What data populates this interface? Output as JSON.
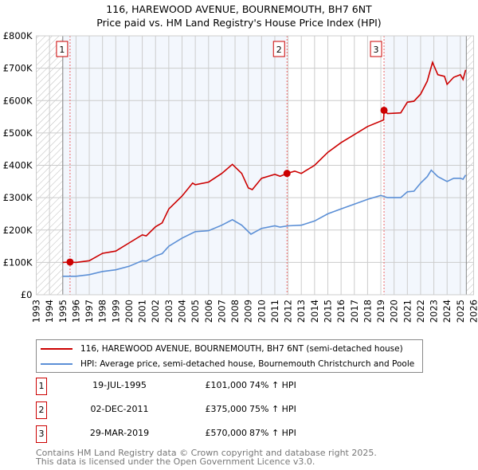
{
  "chart_data": {
    "type": "line",
    "title": "116, HAREWOOD AVENUE, BOURNEMOUTH, BH7 6NT",
    "subtitle": "Price paid vs. HM Land Registry's House Price Index (HPI)",
    "xlim": [
      1993,
      2026
    ],
    "ylim": [
      0,
      800000
    ],
    "x_ticks": [
      "1993",
      "1994",
      "1995",
      "1996",
      "1997",
      "1998",
      "1999",
      "2000",
      "2001",
      "2002",
      "2003",
      "2004",
      "2005",
      "2006",
      "2007",
      "2008",
      "2009",
      "2010",
      "2011",
      "2012",
      "2013",
      "2014",
      "2015",
      "2016",
      "2017",
      "2018",
      "2019",
      "2020",
      "2021",
      "2022",
      "2023",
      "2024",
      "2025",
      "2026"
    ],
    "y_ticks": [
      {
        "v": 0,
        "label": "£0"
      },
      {
        "v": 100000,
        "label": "£100K"
      },
      {
        "v": 200000,
        "label": "£200K"
      },
      {
        "v": 300000,
        "label": "£300K"
      },
      {
        "v": 400000,
        "label": "£400K"
      },
      {
        "v": 500000,
        "label": "£500K"
      },
      {
        "v": 600000,
        "label": "£600K"
      },
      {
        "v": 700000,
        "label": "£700K"
      },
      {
        "v": 800000,
        "label": "£800K"
      }
    ],
    "grid": true,
    "data_start": 1995.0,
    "data_end": 2025.45,
    "series": [
      {
        "name": "116, HAREWOOD AVENUE, BOURNEMOUTH, BH7 6NT (semi-detached house)",
        "color": "#cc0000",
        "x": [
          1995,
          1995.55,
          1996,
          1997,
          1998,
          1999,
          2000,
          2001,
          2001.3,
          2002,
          2002.5,
          2003,
          2004,
          2004.8,
          2005,
          2006,
          2007,
          2007.8,
          2008.5,
          2009,
          2009.3,
          2010,
          2011,
          2011.4,
          2011.92,
          2012.5,
          2013,
          2014,
          2015,
          2016,
          2017,
          2018,
          2019.2,
          2019.25,
          2019.5,
          2020.5,
          2021,
          2021.5,
          2022,
          2022.5,
          2022.9,
          2023.3,
          2023.8,
          2024,
          2024.5,
          2025,
          2025.2,
          2025.4
        ],
        "y": [
          100000,
          101000,
          100000,
          105000,
          128000,
          135000,
          160000,
          185000,
          182000,
          210000,
          222000,
          265000,
          305000,
          345000,
          340000,
          348000,
          375000,
          403000,
          375000,
          330000,
          325000,
          360000,
          372000,
          366000,
          375000,
          382000,
          375000,
          400000,
          440000,
          470000,
          495000,
          520000,
          540000,
          570000,
          560000,
          562000,
          595000,
          598000,
          620000,
          660000,
          718000,
          680000,
          675000,
          650000,
          672000,
          680000,
          665000,
          695000
        ]
      },
      {
        "name": "HPI: Average price, semi-detached house, Bournemouth Christchurch and Poole",
        "color": "#5b8fd6",
        "x": [
          1995,
          1996,
          1997,
          1998,
          1999,
          2000,
          2001,
          2001.3,
          2002,
          2002.5,
          2003,
          2004,
          2005,
          2006,
          2007,
          2007.8,
          2008.5,
          2009.2,
          2010,
          2011,
          2011.4,
          2012,
          2013,
          2014,
          2015,
          2016,
          2017,
          2018,
          2019,
          2019.5,
          2020.5,
          2021,
          2021.5,
          2022,
          2022.5,
          2022.8,
          2023.3,
          2024,
          2024.5,
          2025,
          2025.2,
          2025.4
        ],
        "y": [
          57000,
          57000,
          62000,
          72000,
          77000,
          88000,
          105000,
          104000,
          120000,
          127000,
          150000,
          175000,
          195000,
          198000,
          215000,
          232000,
          215000,
          187000,
          205000,
          213000,
          209000,
          213000,
          215000,
          228000,
          250000,
          265000,
          280000,
          295000,
          307000,
          300000,
          300000,
          318000,
          320000,
          345000,
          365000,
          385000,
          365000,
          350000,
          360000,
          360000,
          357000,
          370000
        ]
      }
    ],
    "sales": [
      {
        "id": "1",
        "x": 1995.55,
        "y": 101000,
        "date": "19-JUL-1995",
        "price": "£101,000",
        "hpi": "74% ↑ HPI"
      },
      {
        "id": "2",
        "x": 2011.92,
        "y": 375000,
        "date": "02-DEC-2011",
        "price": "£375,000",
        "hpi": "75% ↑ HPI"
      },
      {
        "id": "3",
        "x": 2019.24,
        "y": 570000,
        "date": "29-MAR-2019",
        "price": "£570,000",
        "hpi": "87% ↑ HPI"
      }
    ],
    "legend_position": "below"
  },
  "footer": [
    "Contains HM Land Registry data © Crown copyright and database right 2025.",
    "This data is licensed under the Open Government Licence v3.0."
  ]
}
